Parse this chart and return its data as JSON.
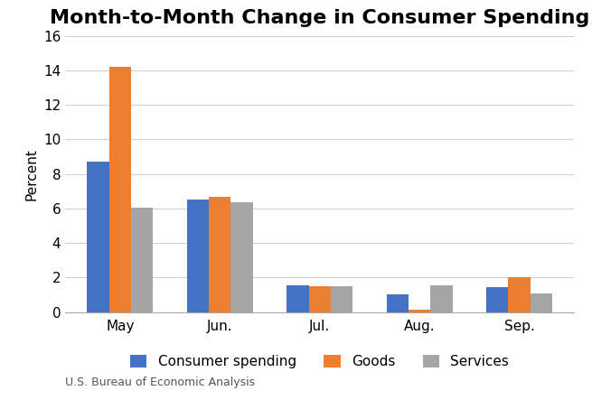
{
  "title": "Month-to-Month Change in Consumer Spending",
  "ylabel": "Percent",
  "xlabel": "",
  "categories": [
    "May",
    "Jun.",
    "Jul.",
    "Aug.",
    "Sep."
  ],
  "series": {
    "Consumer spending": [
      8.7,
      6.5,
      1.55,
      1.0,
      1.45
    ],
    "Goods": [
      14.2,
      6.65,
      1.5,
      0.15,
      2.0
    ],
    "Services": [
      6.05,
      6.35,
      1.5,
      1.55,
      1.1
    ]
  },
  "colors": {
    "Consumer spending": "#4472c4",
    "Goods": "#ed7d31",
    "Services": "#a5a5a5"
  },
  "ylim": [
    0,
    16
  ],
  "yticks": [
    0,
    2,
    4,
    6,
    8,
    10,
    12,
    14,
    16
  ],
  "footnote": "U.S. Bureau of Economic Analysis",
  "background_color": "#ffffff",
  "title_fontsize": 16,
  "axis_label_fontsize": 11,
  "tick_fontsize": 11,
  "legend_fontsize": 11,
  "footnote_fontsize": 9,
  "bar_width": 0.22,
  "xlim": [
    -0.55,
    4.55
  ]
}
